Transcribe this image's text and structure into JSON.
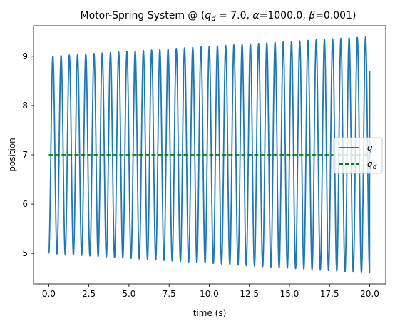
{
  "chart_data": {
    "type": "line",
    "title": {
      "prefix": "Motor-Spring System @ (",
      "qd_symbol": "q",
      "qd_subscript": "d",
      "qd_part": " = 7.0, ",
      "alpha_symbol": "α",
      "alpha_part": "=1000.0, ",
      "beta_symbol": "β",
      "beta_part": "=0.001)"
    },
    "xlabel": "time (s)",
    "ylabel": "position",
    "xlim": [
      -0.95,
      21.0
    ],
    "ylim": [
      4.38,
      9.62
    ],
    "xticks": [
      0.0,
      2.5,
      5.0,
      7.5,
      10.0,
      12.5,
      15.0,
      17.5,
      20.0
    ],
    "xtick_labels": [
      "0.0",
      "2.5",
      "5.0",
      "7.5",
      "10.0",
      "12.5",
      "15.0",
      "17.5",
      "20.0"
    ],
    "yticks": [
      5,
      6,
      7,
      8,
      9
    ],
    "ytick_labels": [
      "5",
      "6",
      "7",
      "8",
      "9"
    ],
    "grid": false,
    "legend_position": "center-right",
    "series": [
      {
        "name": "q",
        "subscript": "",
        "style": "solid",
        "color": "#1f77b4",
        "curve": {
          "start_value": 5.0,
          "end_value": 8.7,
          "end_time": 20.0,
          "period": 0.5128,
          "first_peak_time": 0.3,
          "peak_start": 9.0,
          "peak_end": 9.4,
          "trough_start": 5.0,
          "trough_end": 4.6
        }
      },
      {
        "name": "q",
        "subscript": "d",
        "style": "dashed",
        "color": "#008000",
        "x": [
          0.0,
          20.0
        ],
        "y": [
          7.0,
          7.0
        ]
      }
    ]
  }
}
